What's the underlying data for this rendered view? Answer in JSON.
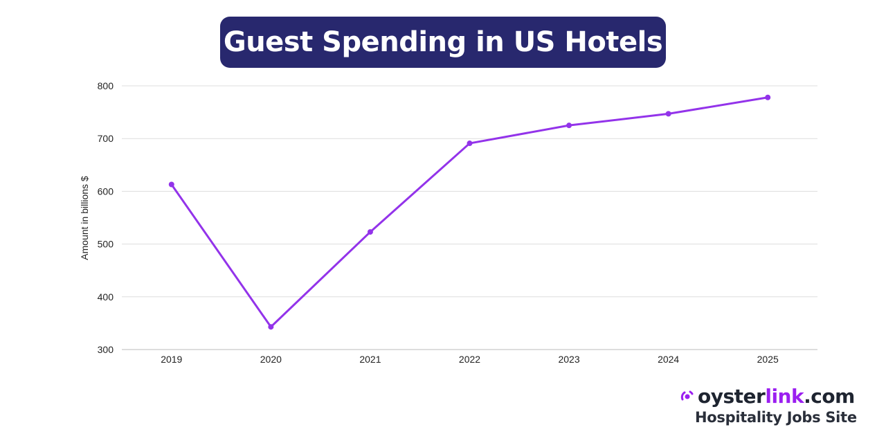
{
  "chart_data": {
    "type": "line",
    "title": "Guest Spending in US Hotels",
    "xlabel": "",
    "ylabel": "Amount in billions $",
    "categories": [
      "2019",
      "2020",
      "2021",
      "2022",
      "2023",
      "2024",
      "2025"
    ],
    "series": [
      {
        "values": [
          613,
          343,
          523,
          691,
          725,
          747,
          778
        ]
      }
    ],
    "ylim": [
      300,
      800
    ],
    "yticks": [
      300,
      400,
      500,
      600,
      700,
      800
    ],
    "grid": true,
    "line_color": "#9333ea",
    "title_bg": "#28286e"
  },
  "logo": {
    "main": "oyster",
    "accent": "link",
    "suffix": ".com",
    "tagline": "Hospitality Jobs Site"
  }
}
